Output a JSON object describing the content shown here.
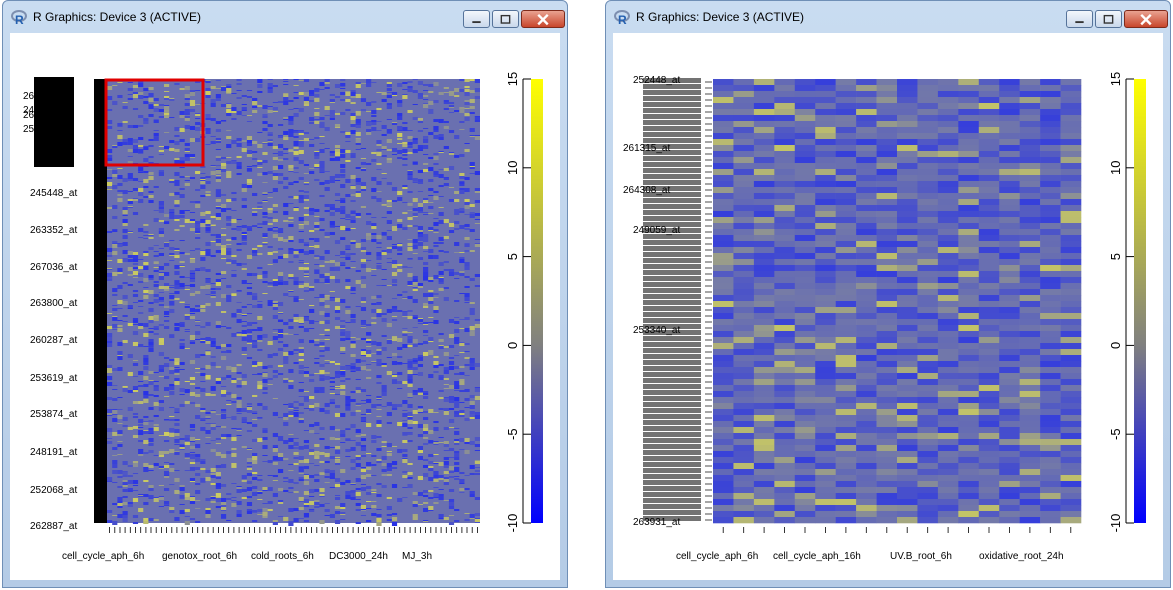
{
  "colors": {
    "low": "#0000ff",
    "mid": "#808080",
    "high": "#ffff00",
    "base": "#6a70b0",
    "highlight": "#e00000"
  },
  "windows": [
    {
      "title": "R Graphics: Device 3 (ACTIVE)",
      "row_labels": [
        "262887_at",
        "252068_at",
        "248191_at",
        "253874_at",
        "253619_at",
        "260287_at",
        "263800_at",
        "267036_at",
        "263352_at",
        "245448_at",
        "26",
        "26",
        "24",
        "25"
      ],
      "col_labels": [
        "cell_cycle_aph_6h",
        "genotox_root_6h",
        "cold_roots_6h",
        "DC3000_24h",
        "MJ_3h"
      ],
      "colorbar_ticks": [
        "15",
        "10",
        "5",
        "0",
        "-5",
        "-10"
      ]
    },
    {
      "title": "R Graphics: Device 3 (ACTIVE)",
      "row_labels": [
        "252448_at",
        "263931_at",
        "261315_at",
        "264308_at",
        "249059_at",
        "253340_at"
      ],
      "col_labels": [
        "cell_cycle_aph_6h",
        "cell_cycle_aph_16h",
        "UV.B_root_6h",
        "oxidative_root_24h"
      ],
      "colorbar_ticks": [
        "15",
        "10",
        "5",
        "0",
        "-5",
        "-10"
      ]
    }
  ]
}
